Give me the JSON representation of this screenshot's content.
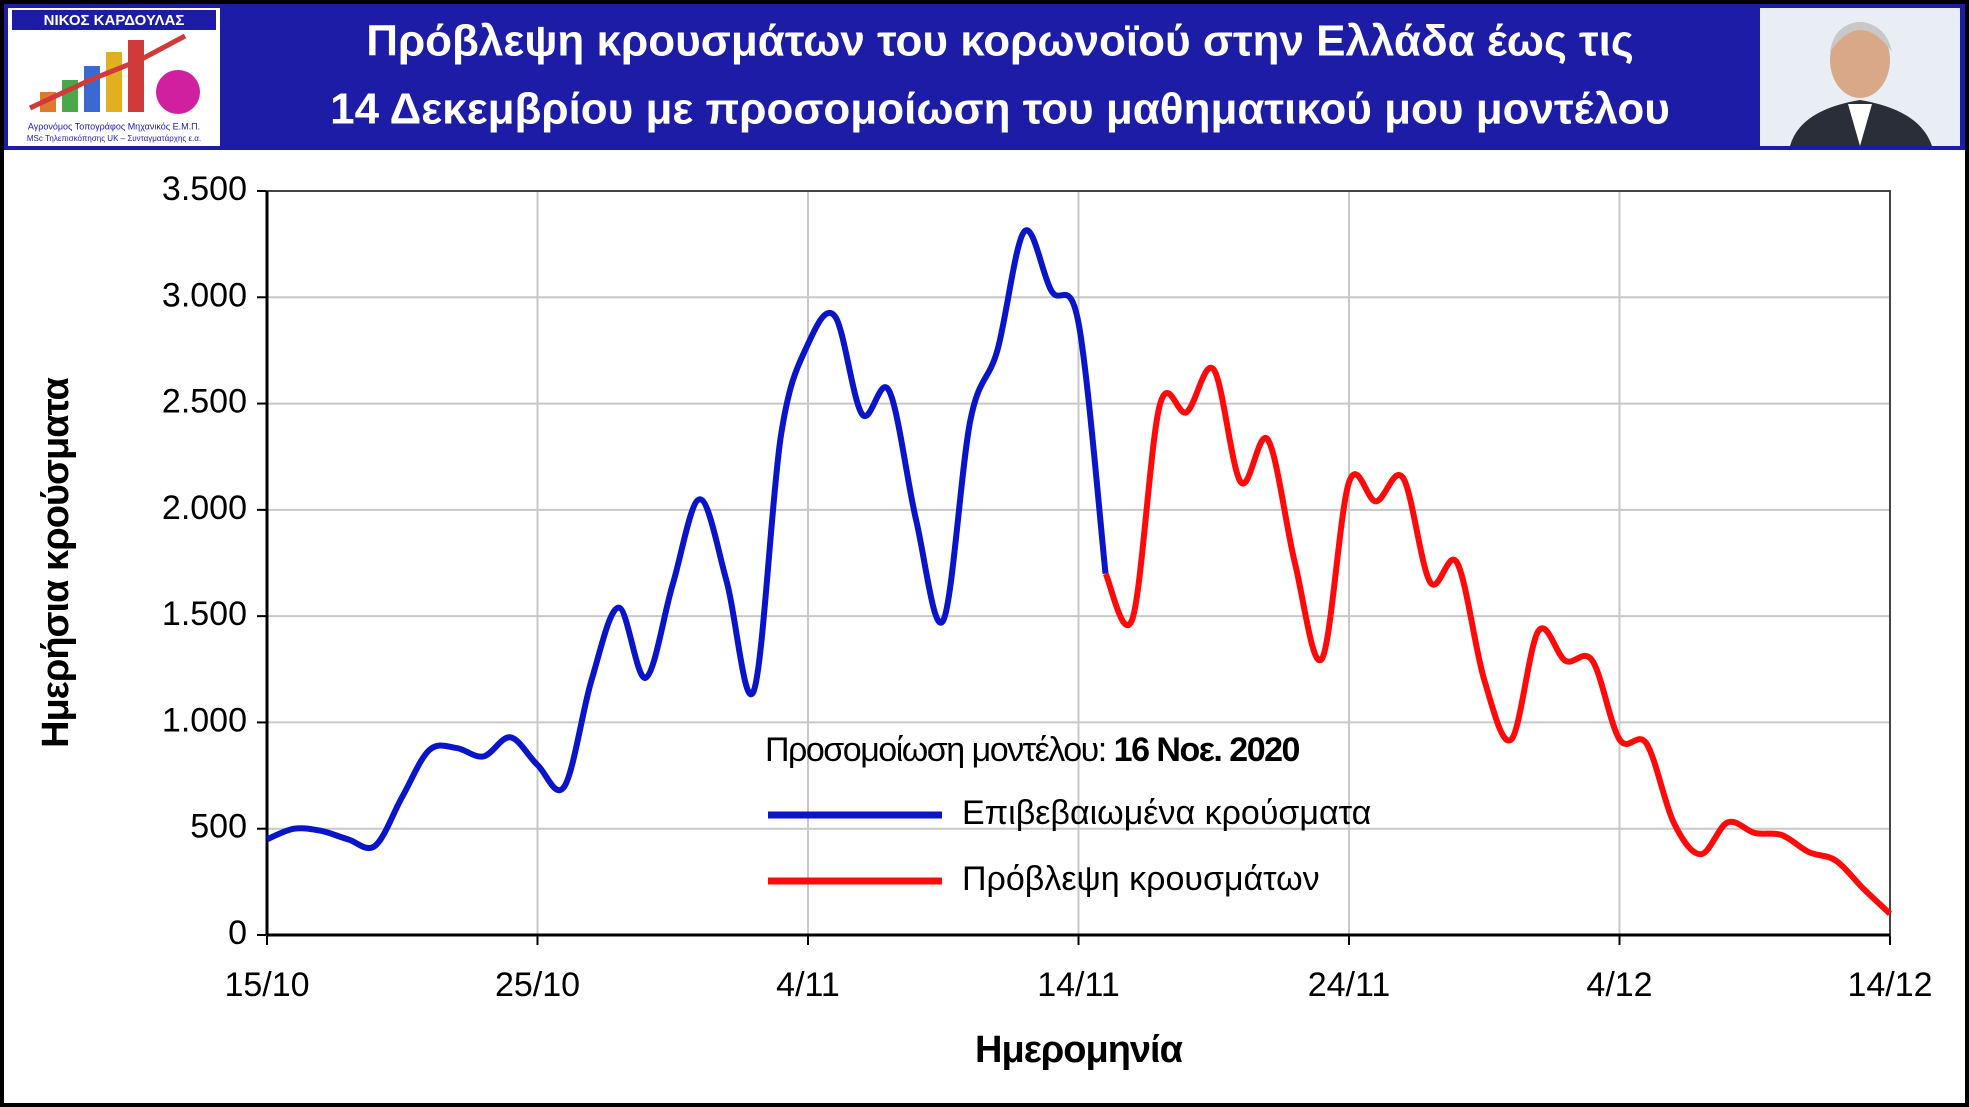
{
  "header": {
    "logo_name": "ΝΙΚΟΣ ΚΑΡΔΟΥΛΑΣ",
    "logo_line1": "Αγρονόμος Τοπογράφος Μηχανικός Ε.Μ.Π.",
    "logo_line2": "MSc Τηλεπισκόπησης UK – Συνταγματάρχης ε.α.",
    "title_line1": "Πρόβλεψη κρουσμάτων του κορωνοϊού στην Ελλάδα έως τις",
    "title_line2": "14 Δεκεμβρίου με προσομοίωση του μαθηματικού μου μοντέλου"
  },
  "chart_data": {
    "type": "line",
    "xlabel": "Ημερομηνία",
    "ylabel": "Ημερήσια κρούσματα",
    "annotation": "Προσομοίωση μοντέλου:",
    "annotation_bold": "16 Νοε. 2020",
    "categories": [
      "15/10",
      null,
      null,
      null,
      null,
      null,
      null,
      null,
      null,
      null,
      "25/10",
      null,
      null,
      null,
      null,
      null,
      null,
      null,
      null,
      null,
      "4/11",
      null,
      null,
      null,
      null,
      null,
      null,
      null,
      null,
      null,
      "14/11",
      null,
      null,
      null,
      null,
      null,
      null,
      null,
      null,
      null,
      "24/11",
      null,
      null,
      null,
      null,
      null,
      null,
      null,
      null,
      null,
      "4/12",
      null,
      null,
      null,
      null,
      null,
      null,
      null,
      null,
      null,
      "14/12"
    ],
    "series": [
      {
        "name": "Επιβεβαιωμένα κρούσματα",
        "color": "#0a14c8",
        "values": [
          450,
          500,
          490,
          450,
          420,
          650,
          870,
          880,
          840,
          930,
          800,
          700,
          1200,
          1540,
          1210,
          1650,
          2050,
          1660,
          1150,
          2350,
          2780,
          2910,
          2450,
          2560,
          1950,
          1480,
          2420,
          2750,
          3310,
          3030,
          2880,
          1700,
          null,
          null,
          null,
          null,
          null,
          null,
          null,
          null,
          null,
          null,
          null,
          null,
          null,
          null,
          null,
          null,
          null,
          null,
          null,
          null,
          null,
          null,
          null,
          null,
          null,
          null,
          null,
          null,
          null
        ]
      },
      {
        "name": "Πρόβλεψη κρουσμάτων",
        "color": "#ff0a0a",
        "values": [
          null,
          null,
          null,
          null,
          null,
          null,
          null,
          null,
          null,
          null,
          null,
          null,
          null,
          null,
          null,
          null,
          null,
          null,
          null,
          null,
          null,
          null,
          null,
          null,
          null,
          null,
          null,
          null,
          null,
          null,
          null,
          1700,
          1490,
          2490,
          2460,
          2660,
          2130,
          2330,
          1750,
          1300,
          2130,
          2040,
          2150,
          1660,
          1750,
          1200,
          920,
          1430,
          1290,
          1290,
          920,
          900,
          530,
          380,
          530,
          480,
          470,
          390,
          350,
          220,
          100
        ]
      }
    ],
    "ylim": [
      0,
      3500
    ],
    "yticks": [
      0,
      500,
      {
        "value": 1000,
        "label": "1.000"
      },
      {
        "value": 1500,
        "label": "1.500"
      },
      {
        "value": 2000,
        "label": "2.000"
      },
      {
        "value": 2500,
        "label": "2.500"
      },
      {
        "value": 3000,
        "label": "3.000"
      },
      {
        "value": 3500,
        "label": "3.500"
      }
    ],
    "grid": true
  }
}
